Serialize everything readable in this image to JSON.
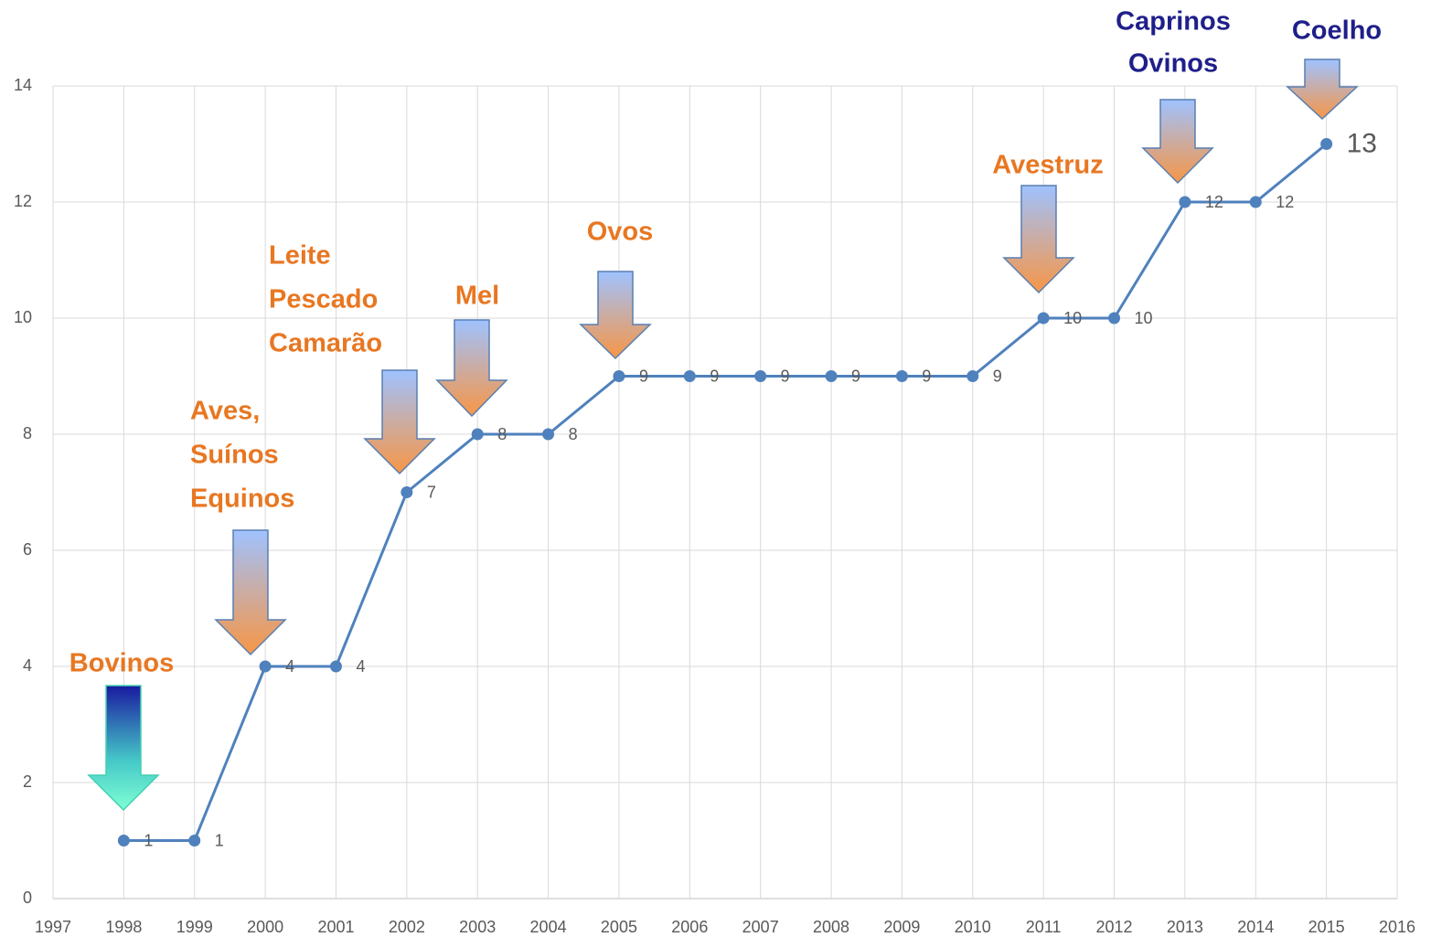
{
  "chart_data": {
    "type": "line",
    "x": [
      1998,
      1999,
      2000,
      2001,
      2002,
      2003,
      2004,
      2005,
      2006,
      2007,
      2008,
      2009,
      2010,
      2011,
      2012,
      2013,
      2014,
      2015
    ],
    "series": [
      {
        "color": "#4f81bd",
        "values": [
          1,
          1,
          4,
          4,
          7,
          8,
          8,
          9,
          9,
          9,
          9,
          9,
          9,
          10,
          10,
          12,
          12,
          13
        ]
      }
    ],
    "xlim": [
      1997,
      2016
    ],
    "xticks": [
      1997,
      1998,
      1999,
      2000,
      2001,
      2002,
      2003,
      2004,
      2005,
      2006,
      2007,
      2008,
      2009,
      2010,
      2011,
      2012,
      2013,
      2014,
      2015,
      2016
    ],
    "ylim": [
      0,
      14
    ],
    "yticks": [
      0,
      2,
      4,
      6,
      8,
      10,
      12,
      14
    ],
    "grid": true,
    "annotations": [
      {
        "lines": [
          "Bovinos"
        ],
        "color": "#e87722"
      },
      {
        "lines": [
          "Aves,",
          "Suínos",
          "Equinos"
        ],
        "color": "#e87722"
      },
      {
        "lines": [
          "Leite",
          "Pescado",
          "Camarão"
        ],
        "color": "#e87722"
      },
      {
        "lines": [
          "Mel"
        ],
        "color": "#e87722"
      },
      {
        "lines": [
          "Ovos"
        ],
        "color": "#e87722"
      },
      {
        "lines": [
          "Avestruz"
        ],
        "color": "#e87722"
      },
      {
        "lines": [
          "Caprinos",
          "Ovinos"
        ],
        "color": "#1f1f8a"
      },
      {
        "lines": [
          "Coelho"
        ],
        "color": "#1f1f8a"
      }
    ]
  }
}
